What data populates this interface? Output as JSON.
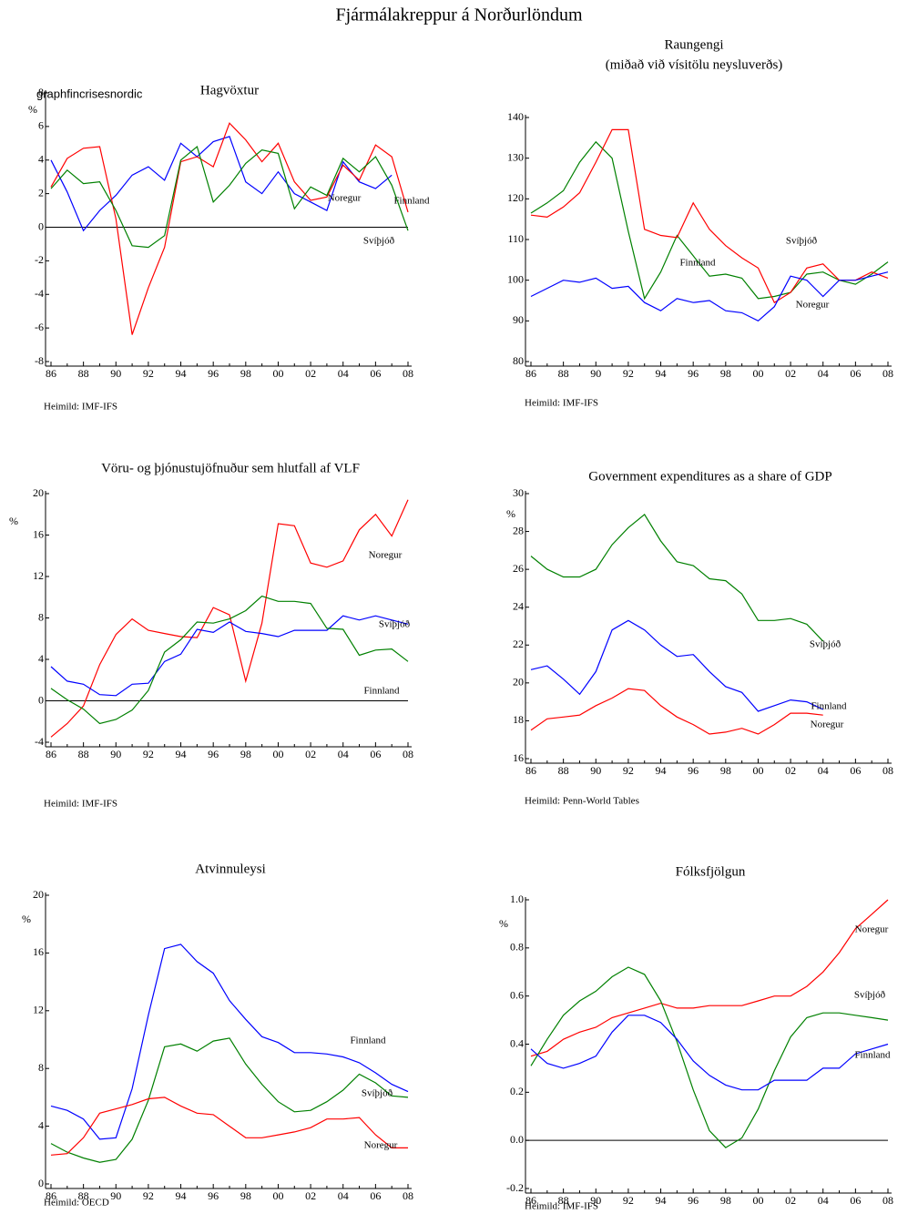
{
  "title": "Fjármálakreppur á Norðurlöndum",
  "chart_data": [
    {
      "type": "line",
      "title": "Hagvöxtur",
      "ylabel": "%",
      "annotation": "graphfincrisesnordic",
      "source": "Heimild: IMF-IFS",
      "zero_line": true,
      "categories": [
        "86",
        null,
        "88",
        null,
        "90",
        null,
        "92",
        null,
        "94",
        null,
        "96",
        null,
        "98",
        null,
        "00",
        null,
        "02",
        null,
        "04",
        null,
        "06",
        null,
        "08"
      ],
      "ylim": [
        -8,
        8
      ],
      "yticks": [
        -8,
        -6,
        -4,
        -2,
        0,
        2,
        4,
        6,
        8
      ],
      "series": [
        {
          "name": "Noregur",
          "color": "#0000ff",
          "values": [
            4.0,
            2.1,
            -0.2,
            1.0,
            1.9,
            3.1,
            3.6,
            2.8,
            5.0,
            4.2,
            5.1,
            5.4,
            2.7,
            2.0,
            3.3,
            2.0,
            1.5,
            1.0,
            3.9,
            2.7,
            2.3,
            3.1,
            null
          ]
        },
        {
          "name": "Finnland",
          "color": "#ff0000",
          "values": [
            2.4,
            4.1,
            4.7,
            4.8,
            0.5,
            -6.4,
            -3.6,
            -1.2,
            3.9,
            4.2,
            3.6,
            6.2,
            5.2,
            3.9,
            5.0,
            2.7,
            1.6,
            1.8,
            3.7,
            2.8,
            4.9,
            4.2,
            0.9
          ]
        },
        {
          "name": "Svíþjóð",
          "color": "#008000",
          "values": [
            2.3,
            3.4,
            2.6,
            2.7,
            1.0,
            -1.1,
            -1.2,
            -0.5,
            4.0,
            4.8,
            1.5,
            2.5,
            3.8,
            4.6,
            4.4,
            1.1,
            2.4,
            1.9,
            4.1,
            3.3,
            4.2,
            2.5,
            -0.2
          ]
        }
      ]
    },
    {
      "type": "line",
      "title": "Raungengi",
      "subtitle": "(miðað við vísitölu neysluverðs)",
      "source": "Heimild: IMF-IFS",
      "zero_line": false,
      "categories": [
        "86",
        null,
        "88",
        null,
        "90",
        null,
        "92",
        null,
        "94",
        null,
        "96",
        null,
        "98",
        null,
        "00",
        null,
        "02",
        null,
        "04",
        null,
        "06",
        null,
        "08"
      ],
      "ylim": [
        80,
        140
      ],
      "yticks": [
        80,
        90,
        100,
        110,
        120,
        130,
        140
      ],
      "series": [
        {
          "name": "Svíþjóð",
          "color": "#008000",
          "values": [
            116.5,
            119,
            122,
            129,
            134,
            130,
            112,
            95.5,
            102,
            111,
            106,
            101,
            101.5,
            100.5,
            95.5,
            96,
            97,
            101.5,
            102,
            100,
            99,
            101.5,
            104.5
          ]
        },
        {
          "name": "Finnland",
          "color": "#ff0000",
          "values": [
            116,
            115.5,
            118,
            121.5,
            129,
            137,
            137,
            112.5,
            111,
            110.5,
            119,
            112.5,
            108.5,
            105.5,
            103,
            94.5,
            97,
            103,
            104,
            100,
            100,
            102,
            100.5
          ]
        },
        {
          "name": "Noregur",
          "color": "#0000ff",
          "values": [
            96,
            98,
            100,
            99.5,
            100.5,
            98,
            98.5,
            94.5,
            92.5,
            95.5,
            94.5,
            95,
            92.5,
            92,
            90,
            93.5,
            101,
            100,
            96,
            100,
            100,
            101,
            102
          ]
        }
      ]
    },
    {
      "type": "line",
      "title": "Vöru- og þjónustujöfnuður sem hlutfall af VLF",
      "ylabel": "%",
      "source": "Heimild: IMF-IFS",
      "zero_line": true,
      "categories": [
        "86",
        null,
        "88",
        null,
        "90",
        null,
        "92",
        null,
        "94",
        null,
        "96",
        null,
        "98",
        null,
        "00",
        null,
        "02",
        null,
        "04",
        null,
        "06",
        null,
        "08"
      ],
      "ylim": [
        -4,
        20
      ],
      "yticks": [
        -4,
        0,
        4,
        8,
        12,
        16,
        20
      ],
      "series": [
        {
          "name": "Noregur",
          "color": "#ff0000",
          "values": [
            -3.5,
            -2.2,
            -0.5,
            3.5,
            6.4,
            7.9,
            6.8,
            6.5,
            6.2,
            6.1,
            9.0,
            8.3,
            1.9,
            7.5,
            17.1,
            16.9,
            13.3,
            12.9,
            13.5,
            16.5,
            18.0,
            15.9,
            19.4
          ]
        },
        {
          "name": "Svíþjóð",
          "color": "#0000ff",
          "values": [
            3.3,
            1.9,
            1.6,
            0.6,
            0.5,
            1.6,
            1.7,
            3.8,
            4.5,
            6.9,
            6.6,
            7.6,
            6.7,
            6.5,
            6.2,
            6.8,
            6.8,
            6.8,
            8.2,
            7.8,
            8.2,
            7.8,
            7.4
          ]
        },
        {
          "name": "Finnland",
          "color": "#008000",
          "values": [
            1.2,
            0.1,
            -0.8,
            -2.2,
            -1.8,
            -0.9,
            1.0,
            4.7,
            5.9,
            7.6,
            7.5,
            7.9,
            8.7,
            10.1,
            9.6,
            9.6,
            9.4,
            7.0,
            6.9,
            4.4,
            4.9,
            5.0,
            3.8
          ]
        }
      ]
    },
    {
      "type": "line",
      "title": "Government expenditures as a share of GDP",
      "ylabel": "%",
      "source": "Heimild: Penn-World Tables",
      "zero_line": false,
      "categories": [
        "86",
        null,
        "88",
        null,
        "90",
        null,
        "92",
        null,
        "94",
        null,
        "96",
        null,
        "98",
        null,
        "00",
        null,
        "02",
        null,
        "04",
        null,
        "06",
        null,
        "08"
      ],
      "ylim": [
        16,
        30
      ],
      "yticks": [
        16,
        18,
        20,
        22,
        24,
        26,
        28,
        30
      ],
      "series": [
        {
          "name": "Svíþjóð",
          "color": "#008000",
          "values": [
            26.7,
            26.0,
            25.6,
            25.6,
            26.0,
            27.3,
            28.2,
            28.9,
            27.5,
            26.4,
            26.2,
            25.5,
            25.4,
            24.7,
            23.3,
            23.3,
            23.4,
            23.1,
            22.2,
            null,
            null,
            null,
            null
          ]
        },
        {
          "name": "Finnland",
          "color": "#0000ff",
          "values": [
            20.7,
            20.9,
            20.2,
            19.4,
            20.6,
            22.8,
            23.3,
            22.8,
            22.0,
            21.4,
            21.5,
            20.6,
            19.8,
            19.5,
            18.5,
            18.8,
            19.1,
            19.0,
            18.6,
            null,
            null,
            null,
            null
          ]
        },
        {
          "name": "Noregur",
          "color": "#ff0000",
          "values": [
            17.5,
            18.1,
            18.2,
            18.3,
            18.8,
            19.2,
            19.7,
            19.6,
            18.8,
            18.2,
            17.8,
            17.3,
            17.4,
            17.6,
            17.3,
            17.8,
            18.4,
            18.4,
            18.3,
            null,
            null,
            null,
            null
          ]
        }
      ]
    },
    {
      "type": "line",
      "title": "Atvinnuleysi",
      "ylabel": "%",
      "source": "Heimild: OECD",
      "zero_line": false,
      "categories": [
        "86",
        null,
        "88",
        null,
        "90",
        null,
        "92",
        null,
        "94",
        null,
        "96",
        null,
        "98",
        null,
        "00",
        null,
        "02",
        null,
        "04",
        null,
        "06",
        null,
        "08"
      ],
      "ylim": [
        0,
        20
      ],
      "yticks": [
        0,
        4,
        8,
        12,
        16,
        20
      ],
      "series": [
        {
          "name": "Finnland",
          "color": "#0000ff",
          "values": [
            5.4,
            5.1,
            4.5,
            3.1,
            3.2,
            6.6,
            11.7,
            16.3,
            16.6,
            15.4,
            14.6,
            12.7,
            11.4,
            10.2,
            9.8,
            9.1,
            9.1,
            9.0,
            8.8,
            8.4,
            7.7,
            6.9,
            6.4
          ]
        },
        {
          "name": "Svíþjóð",
          "color": "#008000",
          "values": [
            2.8,
            2.2,
            1.8,
            1.5,
            1.7,
            3.1,
            5.8,
            9.5,
            9.7,
            9.2,
            9.9,
            10.1,
            8.3,
            6.9,
            5.7,
            5.0,
            5.1,
            5.7,
            6.5,
            7.6,
            7.0,
            6.1,
            6.0
          ]
        },
        {
          "name": "Noregur",
          "color": "#ff0000",
          "values": [
            2.0,
            2.1,
            3.2,
            4.9,
            5.2,
            5.5,
            5.9,
            6.0,
            5.4,
            4.9,
            4.8,
            4.0,
            3.2,
            3.2,
            3.4,
            3.6,
            3.9,
            4.5,
            4.5,
            4.6,
            3.4,
            2.5,
            2.5
          ]
        }
      ]
    },
    {
      "type": "line",
      "title": "Fólksfjölgun",
      "ylabel": "%",
      "source": "Heimild: IMF-IFS",
      "zero_line": true,
      "categories": [
        "86",
        null,
        "88",
        null,
        "90",
        null,
        "92",
        null,
        "94",
        null,
        "96",
        null,
        "98",
        null,
        "00",
        null,
        "02",
        null,
        "04",
        null,
        "06",
        null,
        "08"
      ],
      "ylim": [
        -0.2,
        1.0
      ],
      "yticks": [
        -0.2,
        {
          "value": 0,
          "label": "0.0"
        },
        0.2,
        0.4,
        0.6,
        0.8,
        {
          "value": 1,
          "label": "1.0"
        }
      ],
      "series": [
        {
          "name": "Noregur",
          "color": "#ff0000",
          "values": [
            0.35,
            0.37,
            0.42,
            0.45,
            0.47,
            0.51,
            0.53,
            0.55,
            0.57,
            0.55,
            0.55,
            0.56,
            0.56,
            0.56,
            0.58,
            0.6,
            0.6,
            0.64,
            0.7,
            0.78,
            0.88,
            0.94,
            1.0
          ]
        },
        {
          "name": "Svíþjóð",
          "color": "#008000",
          "values": [
            0.31,
            0.42,
            0.52,
            0.58,
            0.62,
            0.68,
            0.72,
            0.69,
            0.58,
            0.41,
            0.21,
            0.04,
            -0.03,
            0.01,
            0.13,
            0.29,
            0.43,
            0.51,
            0.53,
            0.53,
            0.52,
            0.51,
            0.5
          ]
        },
        {
          "name": "Finnland",
          "color": "#0000ff",
          "values": [
            0.38,
            0.32,
            0.3,
            0.32,
            0.35,
            0.45,
            0.52,
            0.52,
            0.49,
            0.42,
            0.33,
            0.27,
            0.23,
            0.21,
            0.21,
            0.25,
            0.25,
            0.25,
            0.3,
            0.3,
            0.36,
            0.38,
            0.4
          ]
        }
      ]
    }
  ]
}
